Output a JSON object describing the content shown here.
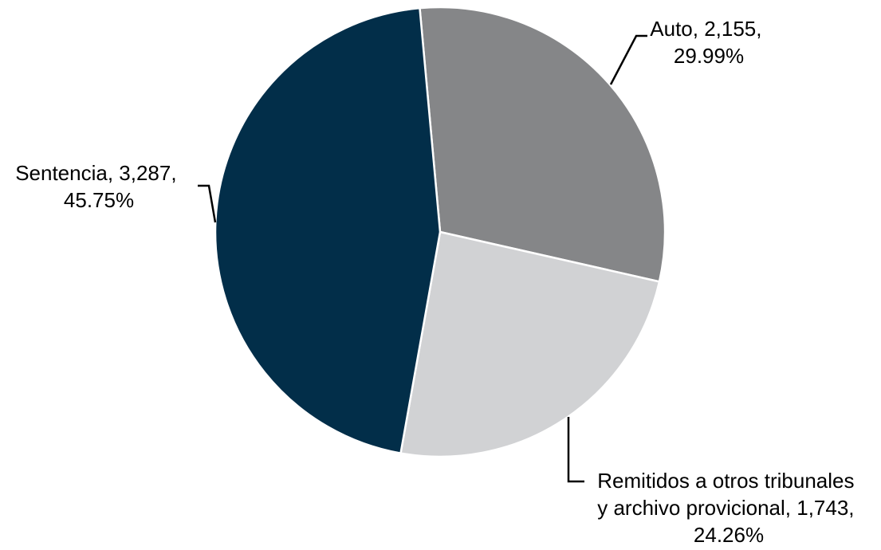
{
  "chart_data": {
    "type": "pie",
    "title": "",
    "slices": [
      {
        "name": "Auto",
        "value": 2155,
        "percent": 29.99,
        "color": "#858688",
        "label_lines": [
          "Auto, 2,155,",
          "29.99%"
        ]
      },
      {
        "name": "Remitidos a otros tribunales y archivo provicional",
        "value": 1743,
        "percent": 24.26,
        "color": "#d1d2d4",
        "label_lines": [
          "Remitidos a otros tribunales",
          "y archivo provicional, 1,743,",
          "24.26%"
        ]
      },
      {
        "name": "Sentencia",
        "value": 3287,
        "percent": 45.75,
        "color": "#022e49",
        "label_lines": [
          "Sentencia, 3,287,",
          "45.75%"
        ]
      }
    ]
  }
}
